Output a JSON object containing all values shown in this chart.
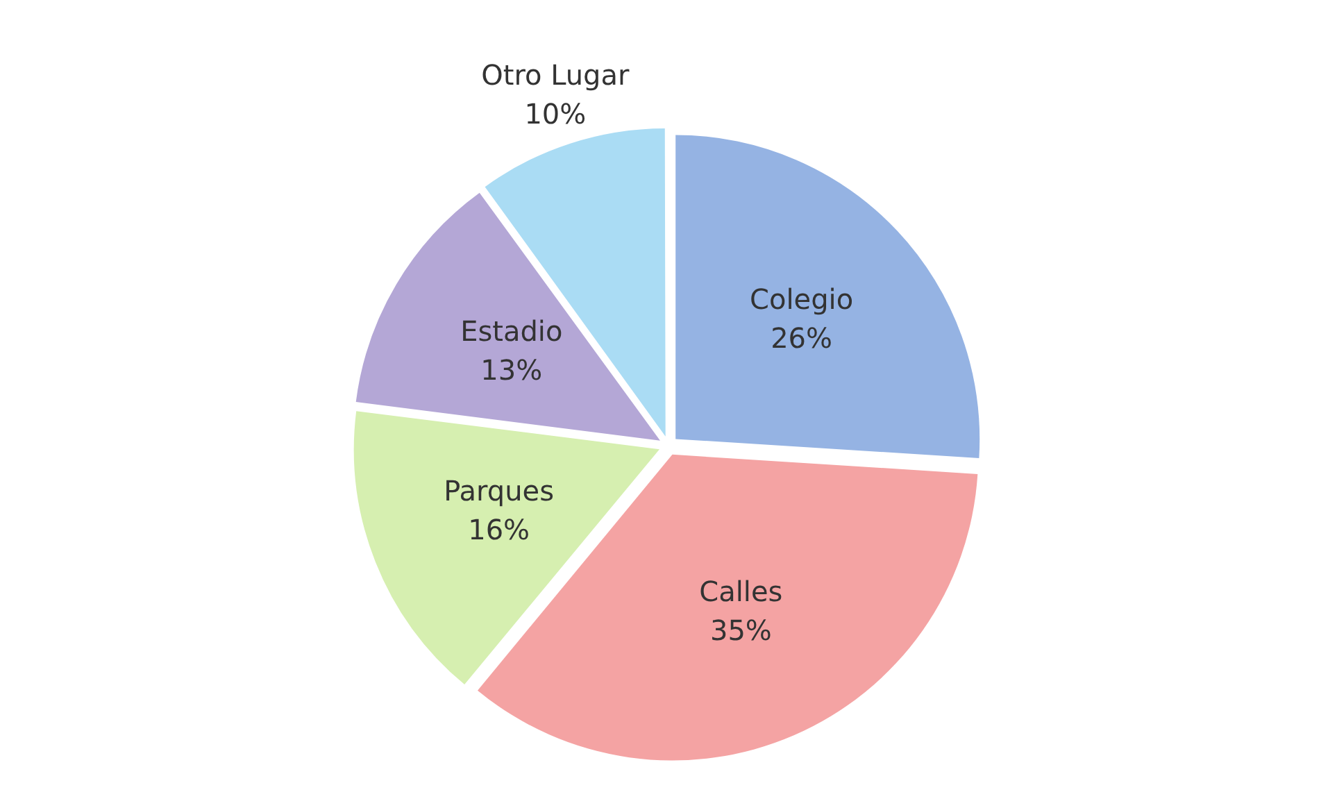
{
  "chart_data": {
    "type": "pie",
    "categories": [
      "Colegio",
      "Calles",
      "Parques",
      "Estadio",
      "Otro Lugar"
    ],
    "values": [
      26,
      35,
      16,
      13,
      10
    ],
    "colors": [
      "#95b3e3",
      "#f4a3a3",
      "#d6efb0",
      "#b4a7d6",
      "#aadcf4"
    ],
    "value_labels": [
      "26%",
      "35%",
      "16%",
      "13%",
      "10%"
    ],
    "legend": false
  }
}
